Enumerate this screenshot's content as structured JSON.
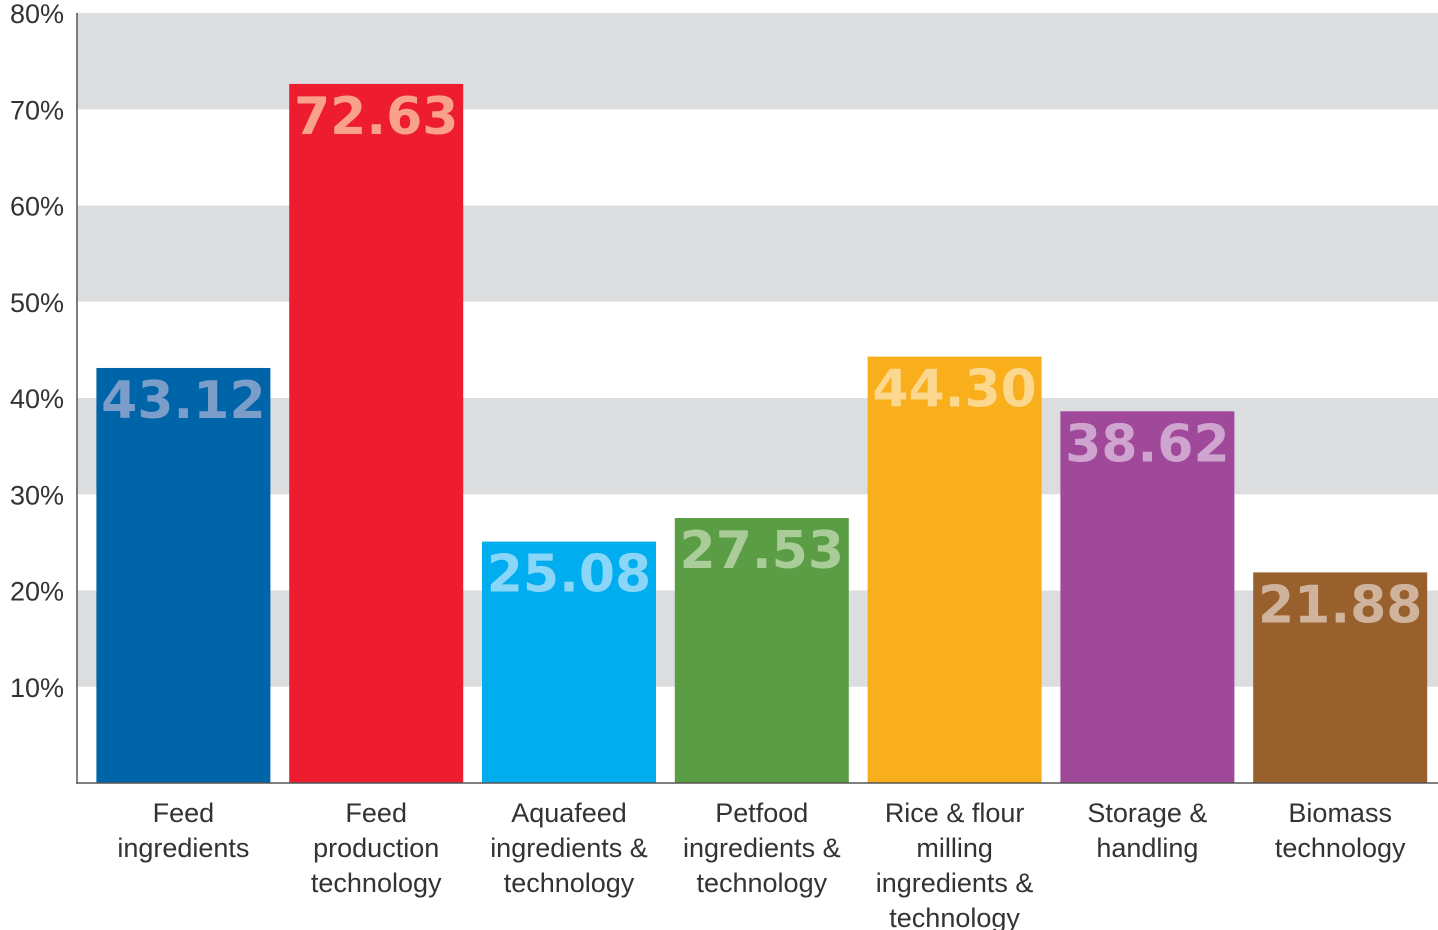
{
  "chart_data": {
    "type": "bar",
    "title": "",
    "xlabel": "",
    "ylabel": "",
    "ylim": [
      0,
      80
    ],
    "y_ticks": [
      "10%",
      "20%",
      "30%",
      "40%",
      "50%",
      "60%",
      "70%",
      "80%"
    ],
    "y_tick_values": [
      10,
      20,
      30,
      40,
      50,
      60,
      70,
      80
    ],
    "banded_background": true,
    "band_color": "#dcdddf",
    "categories": [
      [
        "Feed",
        "ingredients"
      ],
      [
        "Feed",
        "production",
        "technology"
      ],
      [
        "Aquafeed",
        "ingredients &",
        "technology"
      ],
      [
        "Petfood",
        "ingredients &",
        "technology"
      ],
      [
        "Rice & flour",
        "milling",
        "ingredients &",
        "technology"
      ],
      [
        "Storage &",
        "handling"
      ],
      [
        "Biomass",
        "technology"
      ]
    ],
    "values": [
      43.12,
      72.63,
      25.08,
      27.53,
      44.3,
      38.62,
      21.88
    ],
    "value_labels": [
      "43.12",
      "72.63",
      "25.08",
      "27.53",
      "44.30",
      "38.62",
      "21.88"
    ],
    "bar_colors": [
      "#0064a8",
      "#ed1c2e",
      "#00aeef",
      "#5a9d45",
      "#f9ae1b",
      "#a0499b",
      "#97602d"
    ],
    "label_colors": [
      "#7b9dca",
      "#f9a18a",
      "#8ad6f8",
      "#a9cc98",
      "#fcd78e",
      "#cfa4cf",
      "#cfb39d"
    ]
  }
}
